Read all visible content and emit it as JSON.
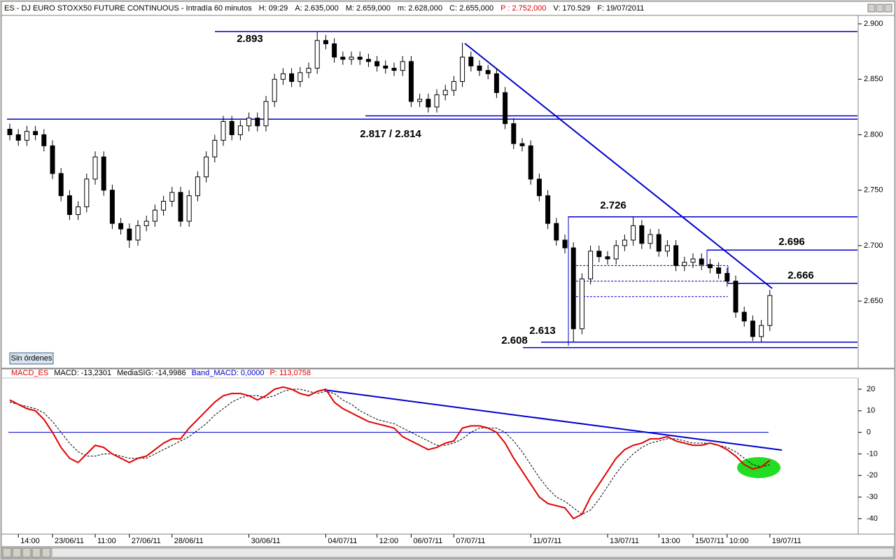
{
  "header": {
    "fields": [
      "ES - DJ EURO STOXX50 FUTURE CONTINUOUS - Intradía 60 minutos",
      "H: 09:29",
      "A: 2.635,000",
      "M: 2.659,000",
      "m: 2.628,000",
      "C: 2.655,000",
      "P : 2.752,000",
      "V: 170.529",
      "F: 19/07/2011"
    ]
  },
  "button": "Sin órdenes",
  "chart_data": [
    {
      "type": "candlestick",
      "ylim": [
        2.592,
        2.9076
      ],
      "yticks": [
        {
          "value": 2.65,
          "label": "2.650"
        },
        {
          "value": 2.7,
          "label": "2.700"
        },
        {
          "value": 2.75,
          "label": "2.750"
        },
        {
          "value": 2.8,
          "label": "2.800"
        },
        {
          "value": 2.85,
          "label": "2.850"
        },
        {
          "value": 2.9,
          "label": "2.900"
        }
      ],
      "categories": [
        null,
        "14:00",
        null,
        null,
        null,
        "23/06/11",
        null,
        null,
        null,
        null,
        "11:00",
        null,
        null,
        null,
        "27/06/11",
        null,
        null,
        null,
        null,
        "28/06/11",
        null,
        null,
        null,
        null,
        null,
        null,
        null,
        null,
        "30/06/11",
        null,
        null,
        null,
        null,
        null,
        null,
        null,
        null,
        "04/07/11",
        null,
        null,
        null,
        null,
        null,
        "12:00",
        null,
        null,
        null,
        "06/07/11",
        null,
        null,
        null,
        null,
        "07/07/11",
        null,
        null,
        null,
        null,
        null,
        null,
        null,
        null,
        "11/07/11",
        null,
        null,
        null,
        null,
        null,
        null,
        null,
        null,
        "13/07/11",
        null,
        null,
        null,
        null,
        null,
        "13:00",
        null,
        null,
        null,
        "15/07/11",
        null,
        null,
        null,
        "10:00",
        null,
        null,
        null,
        null,
        "19/07/11"
      ],
      "open": [
        2.805,
        2.8,
        2.795,
        2.803,
        2.8,
        2.79,
        2.765,
        2.745,
        2.728,
        2.735,
        2.76,
        2.78,
        2.75,
        2.72,
        2.715,
        2.705,
        2.718,
        2.722,
        2.732,
        2.74,
        2.748,
        2.722,
        2.745,
        2.762,
        2.78,
        2.795,
        2.812,
        2.8,
        2.808,
        2.815,
        2.808,
        2.83,
        2.85,
        2.855,
        2.848,
        2.856,
        2.86,
        2.885,
        2.882,
        2.87,
        2.868,
        2.87,
        2.868,
        2.866,
        2.862,
        2.86,
        2.858,
        2.866,
        2.83,
        2.832,
        2.825,
        2.836,
        2.84,
        2.848,
        2.87,
        2.862,
        2.858,
        2.855,
        2.838,
        2.81,
        2.792,
        2.79,
        2.76,
        2.745,
        2.72,
        2.705,
        2.698,
        2.625,
        2.67,
        2.695,
        2.69,
        2.688,
        2.7,
        2.705,
        2.718,
        2.702,
        2.71,
        2.695,
        2.7,
        2.682,
        2.685,
        2.688,
        2.683,
        2.68,
        2.675,
        2.668,
        2.64,
        2.632,
        2.618,
        2.628
      ],
      "high": [
        2.81,
        2.805,
        2.808,
        2.808,
        2.805,
        2.795,
        2.77,
        2.75,
        2.74,
        2.765,
        2.785,
        2.785,
        2.755,
        2.725,
        2.72,
        2.723,
        2.727,
        2.737,
        2.745,
        2.753,
        2.753,
        2.75,
        2.767,
        2.785,
        2.8,
        2.817,
        2.817,
        2.813,
        2.82,
        2.82,
        2.835,
        2.855,
        2.86,
        2.86,
        2.861,
        2.865,
        2.893,
        2.89,
        2.887,
        2.875,
        2.875,
        2.875,
        2.873,
        2.871,
        2.867,
        2.865,
        2.871,
        2.871,
        2.837,
        2.837,
        2.841,
        2.845,
        2.853,
        2.883,
        2.875,
        2.867,
        2.863,
        2.86,
        2.843,
        2.815,
        2.797,
        2.795,
        2.765,
        2.75,
        2.725,
        2.71,
        2.703,
        2.675,
        2.7,
        2.7,
        2.695,
        2.705,
        2.71,
        2.726,
        2.723,
        2.715,
        2.715,
        2.705,
        2.705,
        2.69,
        2.693,
        2.693,
        2.688,
        2.685,
        2.68,
        2.673,
        2.645,
        2.637,
        2.633,
        2.66
      ],
      "low": [
        2.795,
        2.79,
        2.79,
        2.795,
        2.785,
        2.76,
        2.74,
        2.723,
        2.723,
        2.73,
        2.755,
        2.745,
        2.715,
        2.71,
        2.698,
        2.7,
        2.713,
        2.717,
        2.727,
        2.735,
        2.717,
        2.717,
        2.74,
        2.757,
        2.775,
        2.79,
        2.795,
        2.795,
        2.803,
        2.803,
        2.803,
        2.825,
        2.845,
        2.843,
        2.843,
        2.851,
        2.855,
        2.877,
        2.865,
        2.863,
        2.863,
        2.863,
        2.861,
        2.857,
        2.855,
        2.853,
        2.853,
        2.825,
        2.825,
        2.82,
        2.82,
        2.831,
        2.835,
        2.843,
        2.857,
        2.853,
        2.85,
        2.833,
        2.805,
        2.787,
        2.785,
        2.755,
        2.74,
        2.715,
        2.7,
        2.693,
        2.613,
        2.62,
        2.665,
        2.685,
        2.683,
        2.683,
        2.695,
        2.7,
        2.697,
        2.697,
        2.69,
        2.69,
        2.677,
        2.677,
        2.68,
        2.678,
        2.675,
        2.67,
        2.663,
        2.635,
        2.627,
        2.614,
        2.613,
        2.623
      ],
      "close": [
        2.8,
        2.795,
        2.803,
        2.8,
        2.79,
        2.765,
        2.745,
        2.728,
        2.735,
        2.76,
        2.78,
        2.75,
        2.72,
        2.715,
        2.705,
        2.718,
        2.722,
        2.732,
        2.74,
        2.748,
        2.722,
        2.745,
        2.762,
        2.78,
        2.795,
        2.812,
        2.8,
        2.808,
        2.815,
        2.808,
        2.83,
        2.85,
        2.855,
        2.848,
        2.856,
        2.86,
        2.885,
        2.882,
        2.87,
        2.868,
        2.87,
        2.868,
        2.866,
        2.862,
        2.86,
        2.858,
        2.866,
        2.83,
        2.832,
        2.825,
        2.836,
        2.84,
        2.848,
        2.87,
        2.862,
        2.858,
        2.855,
        2.838,
        2.81,
        2.792,
        2.79,
        2.76,
        2.745,
        2.72,
        2.705,
        2.698,
        2.625,
        2.67,
        2.695,
        2.69,
        2.688,
        2.7,
        2.705,
        2.718,
        2.702,
        2.71,
        2.695,
        2.7,
        2.682,
        2.685,
        2.688,
        2.683,
        2.68,
        2.675,
        2.668,
        2.64,
        2.632,
        2.618,
        2.628,
        2.655
      ],
      "levels": [
        {
          "value": 2.893,
          "label": "2.893"
        },
        {
          "value": 2.817,
          "label": "2.817 / 2.814"
        },
        {
          "value": 2.814
        },
        {
          "value": 2.726,
          "label": "2.726"
        },
        {
          "value": 2.696,
          "label": "2.696"
        },
        {
          "value": 2.666,
          "label": "2.666"
        },
        {
          "value": 2.613,
          "label": "2.613"
        },
        {
          "value": 2.608,
          "label": "2.608"
        }
      ],
      "dashed_levels": [
        2.682,
        2.668,
        2.654
      ],
      "level_color": "#0000cc",
      "label_color": "#e00000"
    },
    {
      "type": "line",
      "legend": [
        "MACD_ES",
        "MACD: -13,2301",
        "MediaSIG: -14,9986",
        "Band_MACD: 0,0000",
        "P: 113,0758"
      ],
      "ylim": [
        -46.2,
        25.2
      ],
      "yticks": [
        20,
        10,
        0,
        -10,
        -20,
        -30,
        -40
      ],
      "band": 0,
      "band_color": "#0000cc",
      "series": [
        {
          "color": "#e00000",
          "values": [
            15,
            13,
            11,
            10,
            6,
            0,
            -7,
            -12,
            -14,
            -10,
            -6,
            -7,
            -10,
            -12,
            -14,
            -12,
            -11,
            -8,
            -5,
            -3,
            -3,
            2,
            6,
            10,
            14,
            17,
            18,
            18,
            17,
            15,
            17,
            20,
            21,
            20,
            18,
            17,
            19,
            20,
            14,
            11,
            9,
            7,
            5,
            4,
            3,
            2,
            -2,
            -4,
            -6,
            -8,
            -7,
            -5,
            -4,
            2,
            3,
            3,
            2,
            0,
            -5,
            -12,
            -18,
            -24,
            -30,
            -33,
            -34,
            -35,
            -40,
            -38,
            -30,
            -24,
            -18,
            -12,
            -8,
            -6,
            -5,
            -3,
            -3,
            -2,
            -4,
            -5,
            -6,
            -6,
            -5,
            -6,
            -8,
            -11,
            -15,
            -17,
            -16,
            -13
          ]
        },
        {
          "color": "#000000",
          "dashed": true,
          "values": [
            14,
            13,
            12,
            11,
            9,
            5,
            0,
            -5,
            -9,
            -11,
            -11,
            -10,
            -10,
            -11,
            -12,
            -12,
            -12,
            -10,
            -8,
            -6,
            -4,
            -2,
            1,
            4,
            8,
            11,
            14,
            16,
            17,
            17,
            16,
            17,
            19,
            20,
            20,
            19,
            18,
            19,
            18,
            15,
            13,
            10,
            8,
            6,
            5,
            4,
            2,
            0,
            -2,
            -4,
            -6,
            -6,
            -5,
            -3,
            0,
            2,
            2,
            2,
            0,
            -4,
            -9,
            -15,
            -21,
            -26,
            -30,
            -32,
            -35,
            -38,
            -36,
            -31,
            -25,
            -19,
            -14,
            -10,
            -7,
            -5,
            -4,
            -3,
            -3,
            -4,
            -5,
            -5,
            -5,
            -6,
            -7,
            -9,
            -12,
            -15,
            -16,
            -15
          ]
        }
      ]
    }
  ]
}
